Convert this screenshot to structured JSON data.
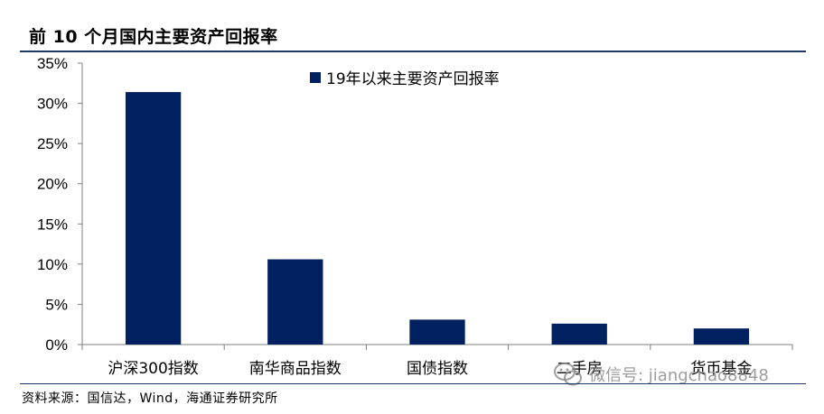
{
  "header": {
    "title": "前 10 个月国内主要资产回报率"
  },
  "footer": {
    "source": "资料来源：国信达，Wind，海通证券研究所"
  },
  "watermark": {
    "text": "微信号: jiangchao8848",
    "icon": "wechat-icon"
  },
  "chart_data": {
    "type": "bar",
    "title": "前 10 个月国内主要资产回报率",
    "categories": [
      "沪深300指数",
      "南华商品指数",
      "国债指数",
      "二手房",
      "货币基金"
    ],
    "series": [
      {
        "name": "19年以来主要资产回报率",
        "values": [
          0.314,
          0.106,
          0.031,
          0.026,
          0.02
        ],
        "color": "#002060"
      }
    ],
    "ylim": [
      0,
      0.35
    ],
    "yticks": [
      0,
      0.05,
      0.1,
      0.15,
      0.2,
      0.25,
      0.3,
      0.35
    ],
    "ytick_labels": [
      "0%",
      "5%",
      "10%",
      "15%",
      "20%",
      "25%",
      "30%",
      "35%"
    ],
    "xlabel": "",
    "ylabel": "",
    "grid": false,
    "legend_position": "top"
  }
}
